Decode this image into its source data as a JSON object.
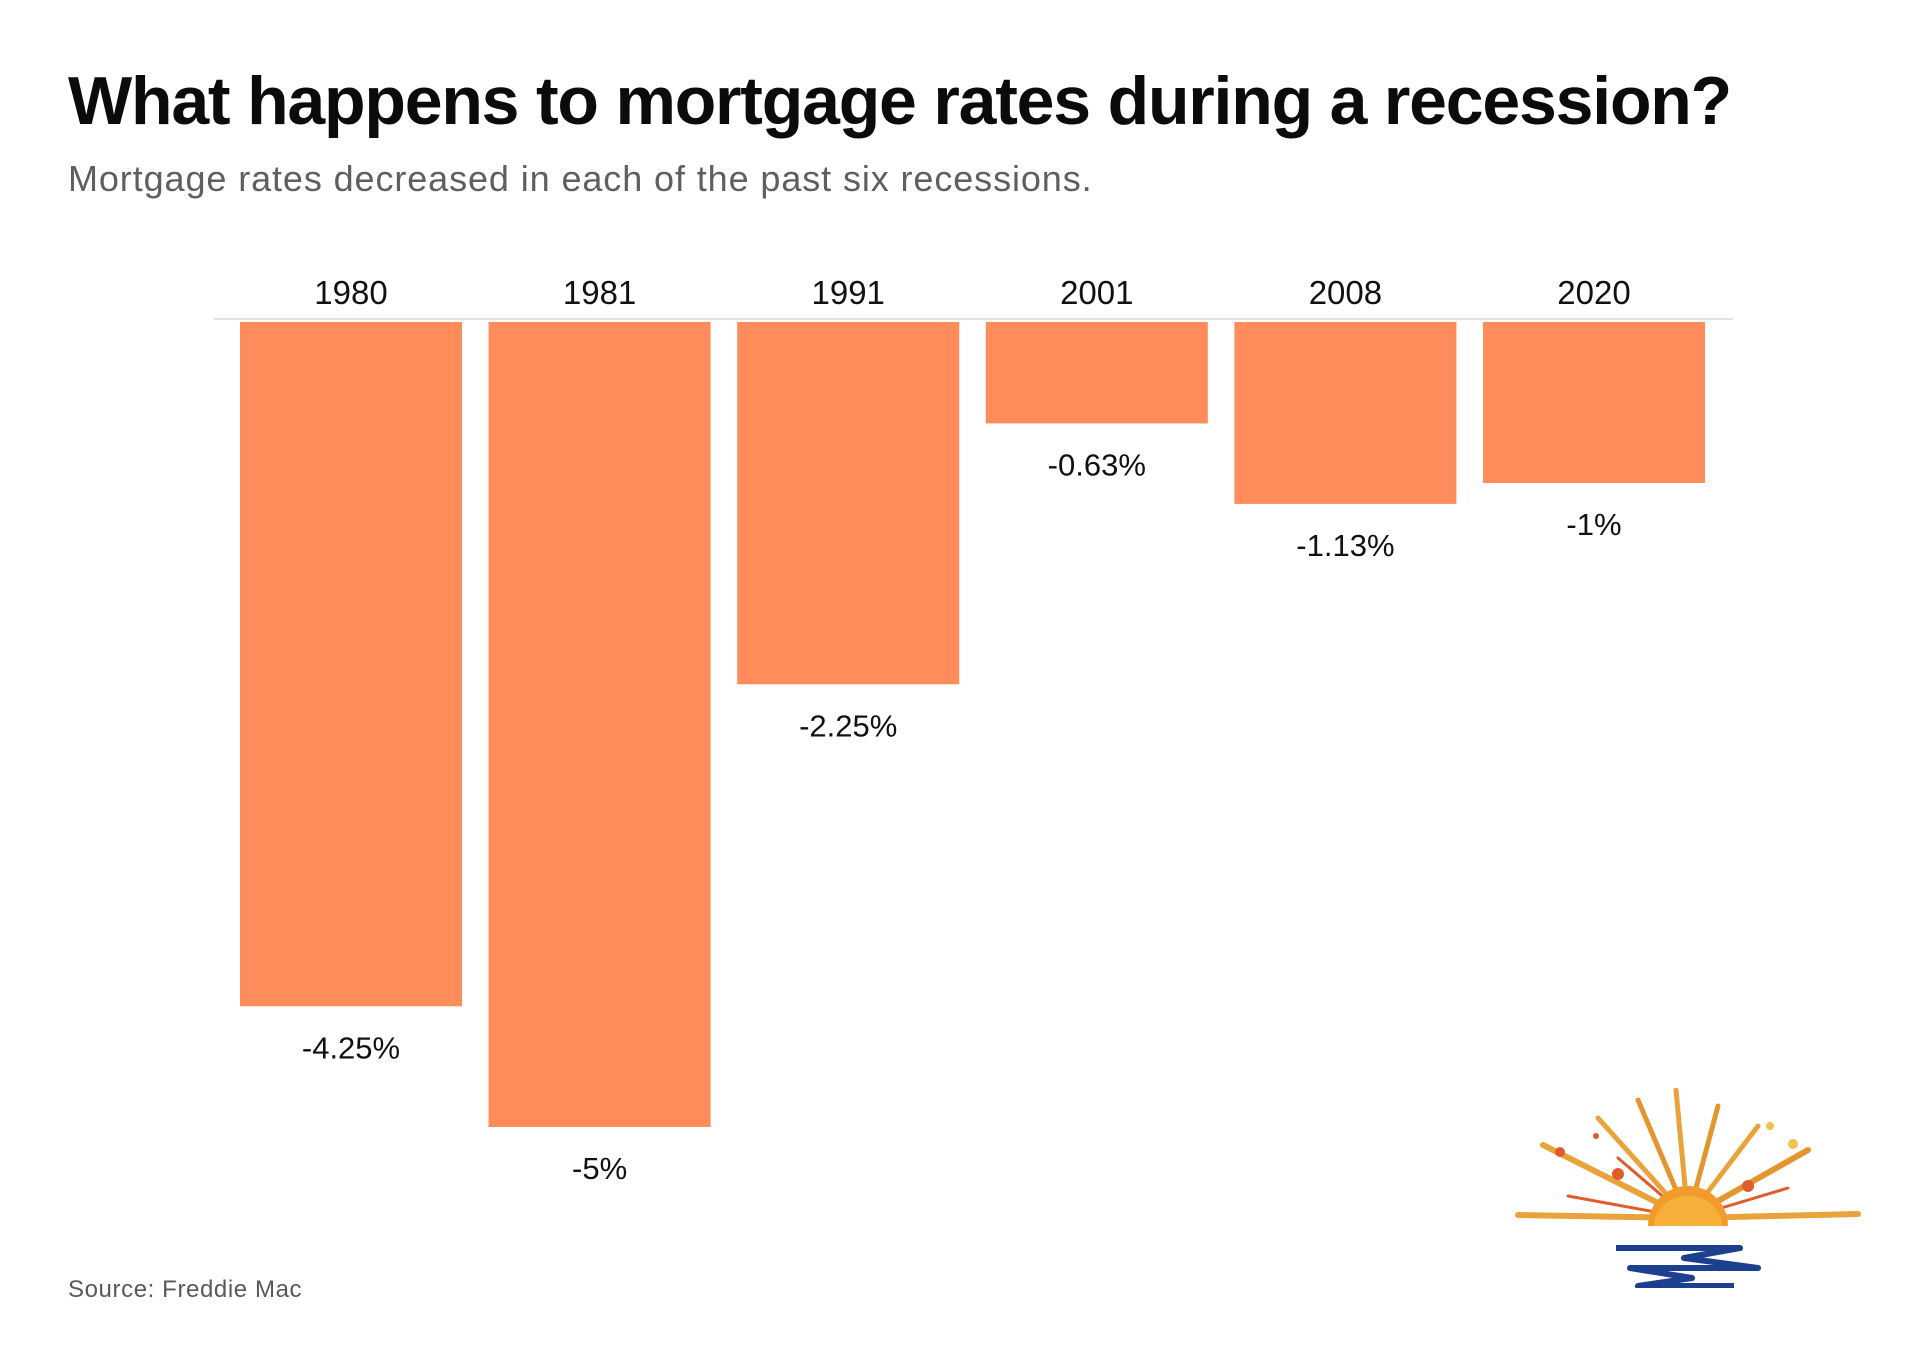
{
  "header": {
    "title": "What happens to mortgage rates during a recession?",
    "subtitle": "Mortgage rates decreased in each of the past six recessions."
  },
  "footer": {
    "source": "Source: Freddie Mac"
  },
  "colors": {
    "bar": "#ff8c5a",
    "text": "#111111",
    "muted": "#5f5f5f",
    "baseline": "#e3e3e3"
  },
  "chart_data": {
    "type": "bar",
    "orientation": "vertical-downward",
    "title": "What happens to mortgage rates during a recession?",
    "subtitle": "Mortgage rates decreased in each of the past six recessions.",
    "xlabel": "",
    "ylabel": "",
    "categories": [
      "1980",
      "1981",
      "1991",
      "2001",
      "2008",
      "2020"
    ],
    "values": [
      -4.25,
      -5,
      -2.25,
      -0.63,
      -1.13,
      -1
    ],
    "labels": [
      "-4.25%",
      "-5%",
      "-2.25%",
      "-0.63%",
      "-1.13%",
      "-1%"
    ],
    "unit": "%",
    "ylim": [
      -5,
      0
    ],
    "grid": false,
    "legend": "none",
    "category_labels_position": "top"
  }
}
